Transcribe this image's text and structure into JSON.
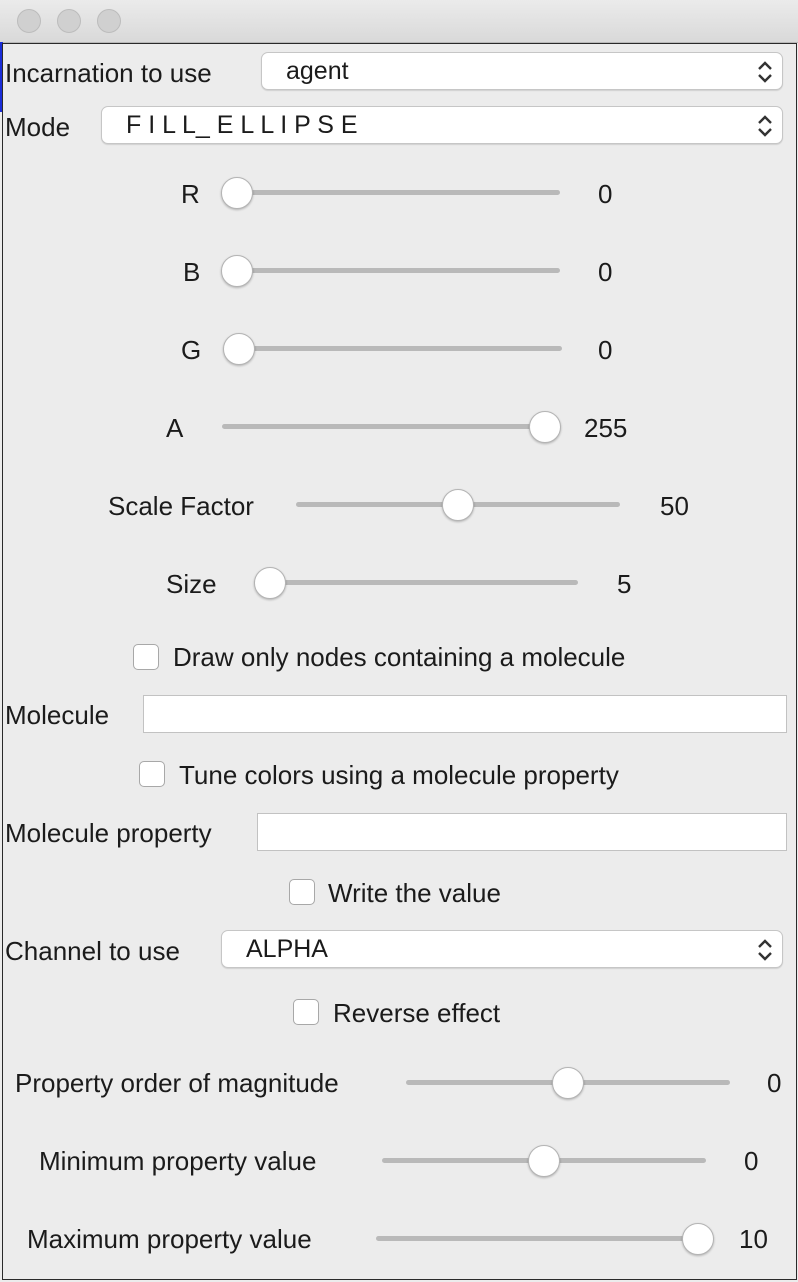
{
  "form": {
    "incarnation": {
      "label": "Incarnation to use",
      "value": "agent"
    },
    "mode": {
      "label": "Mode",
      "value": "F I L L_ E L L I P S E"
    },
    "sliders": [
      {
        "label": "R",
        "value": "0",
        "fraction": 0.0
      },
      {
        "label": "B",
        "value": "0",
        "fraction": 0.0
      },
      {
        "label": "G",
        "value": "0",
        "fraction": 0.0
      },
      {
        "label": "A",
        "value": "255",
        "fraction": 1.0
      },
      {
        "label": "Scale Factor",
        "value": "50",
        "fraction": 0.5
      },
      {
        "label": "Size",
        "value": "5",
        "fraction": 0.0
      }
    ],
    "draw_only_checkbox": {
      "label": "Draw only nodes containing a molecule",
      "checked": false
    },
    "molecule": {
      "label": "Molecule",
      "value": ""
    },
    "tune_colors_checkbox": {
      "label": "Tune colors using a molecule property",
      "checked": false
    },
    "molecule_property": {
      "label": "Molecule property",
      "value": ""
    },
    "write_value_checkbox": {
      "label": "Write the value",
      "checked": false
    },
    "channel": {
      "label": "Channel to use",
      "value": "ALPHA"
    },
    "reverse_effect_checkbox": {
      "label": "Reverse effect",
      "checked": false
    },
    "property_sliders": [
      {
        "label": "Property order of magnitude",
        "value": "0",
        "fraction": 0.5
      },
      {
        "label": "Minimum property value",
        "value": "0",
        "fraction": 0.5
      },
      {
        "label": "Maximum property value",
        "value": "10",
        "fraction": 1.0
      }
    ]
  }
}
